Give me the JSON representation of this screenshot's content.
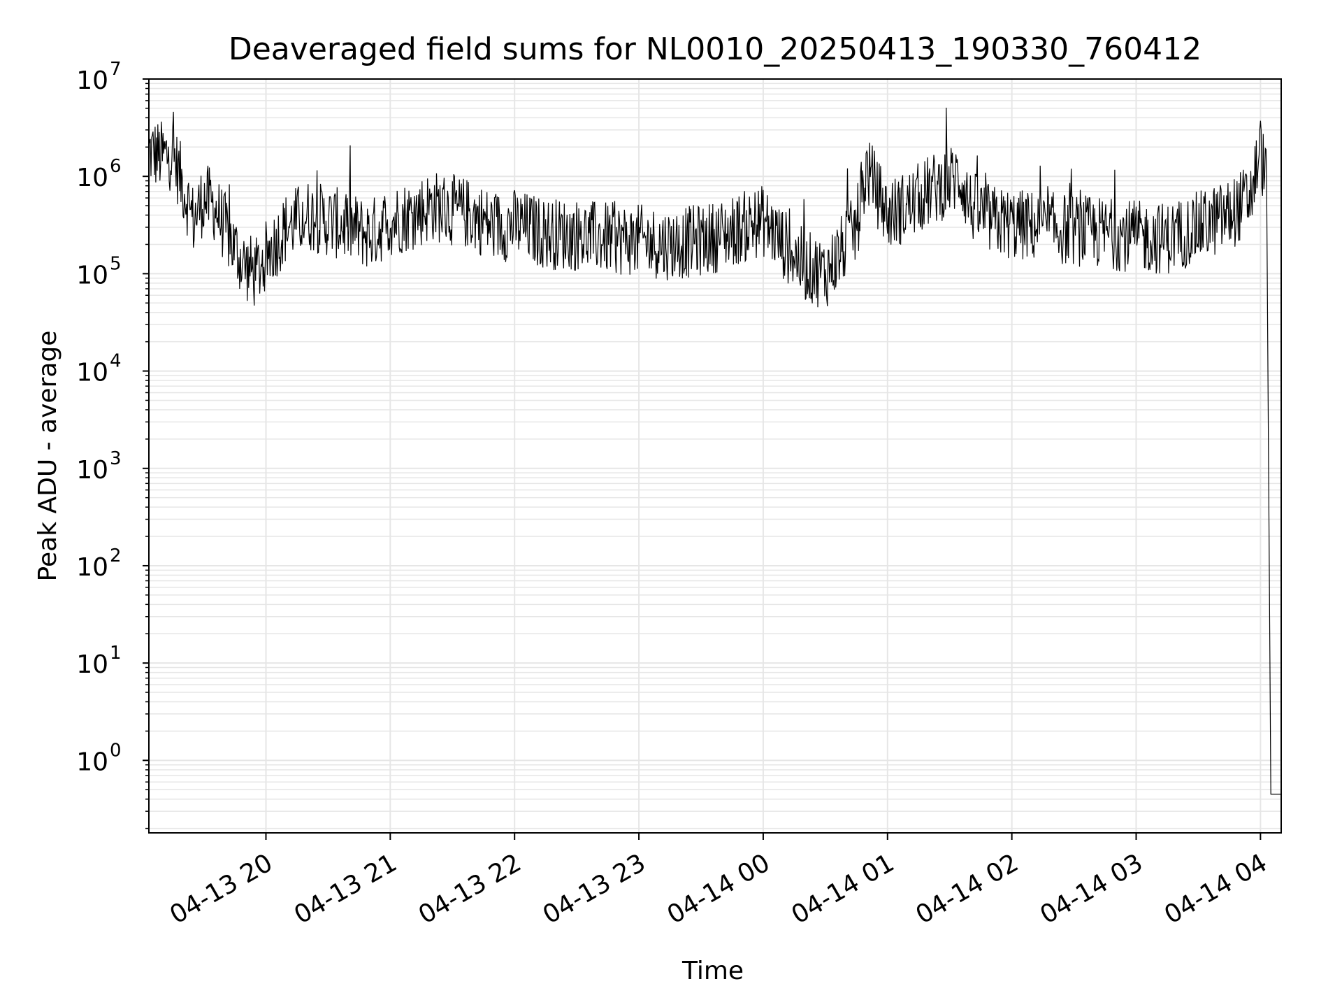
{
  "chart_data": {
    "type": "line",
    "title": "Deaveraged field sums for NL0010_20250413_190330_760412",
    "xlabel": "Time",
    "ylabel": "Peak ADU - average",
    "yscale": "log",
    "ylim": [
      0.18,
      10000000
    ],
    "xlim": [
      "2025-04-13T19:03:30",
      "2025-04-14T04:10:00"
    ],
    "x_ticks": [
      {
        "value": "2025-04-13T20:00",
        "label": "04-13 20"
      },
      {
        "value": "2025-04-13T21:00",
        "label": "04-13 21"
      },
      {
        "value": "2025-04-13T22:00",
        "label": "04-13 22"
      },
      {
        "value": "2025-04-13T23:00",
        "label": "04-13 23"
      },
      {
        "value": "2025-04-14T00:00",
        "label": "04-14 00"
      },
      {
        "value": "2025-04-14T01:00",
        "label": "04-14 01"
      },
      {
        "value": "2025-04-14T02:00",
        "label": "04-14 02"
      },
      {
        "value": "2025-04-14T03:00",
        "label": "04-14 03"
      },
      {
        "value": "2025-04-14T04:00",
        "label": "04-14 04"
      }
    ],
    "y_ticks": [
      {
        "value": 1,
        "base": "10",
        "exp": "0"
      },
      {
        "value": 10,
        "base": "10",
        "exp": "1"
      },
      {
        "value": 100,
        "base": "10",
        "exp": "2"
      },
      {
        "value": 1000,
        "base": "10",
        "exp": "3"
      },
      {
        "value": 10000,
        "base": "10",
        "exp": "4"
      },
      {
        "value": 100000,
        "base": "10",
        "exp": "5"
      },
      {
        "value": 1000000,
        "base": "10",
        "exp": "6"
      },
      {
        "value": 10000000,
        "base": "10",
        "exp": "7"
      }
    ],
    "grid": true,
    "line_color": "#000000",
    "grid_color": "#e6e6e6",
    "series": [
      {
        "x": [
          "2025-04-13T19:03:30",
          "2025-04-13T19:10",
          "2025-04-13T19:15",
          "2025-04-13T19:20",
          "2025-04-13T19:25",
          "2025-04-13T19:30",
          "2025-04-13T19:35",
          "2025-04-13T19:40",
          "2025-04-13T19:45",
          "2025-04-13T19:50",
          "2025-04-13T19:55",
          "2025-04-13T20:00",
          "2025-04-13T20:10",
          "2025-04-13T20:20",
          "2025-04-13T20:30",
          "2025-04-13T20:40",
          "2025-04-13T20:50",
          "2025-04-13T21:00",
          "2025-04-13T21:10",
          "2025-04-13T21:20",
          "2025-04-13T21:30",
          "2025-04-13T21:40",
          "2025-04-13T21:50",
          "2025-04-13T22:00",
          "2025-04-13T22:15",
          "2025-04-13T22:30",
          "2025-04-13T22:45",
          "2025-04-13T23:00",
          "2025-04-13T23:15",
          "2025-04-13T23:30",
          "2025-04-13T23:40",
          "2025-04-13T23:50",
          "2025-04-14T00:00",
          "2025-04-14T00:10",
          "2025-04-14T00:20",
          "2025-04-14T00:30",
          "2025-04-14T00:40",
          "2025-04-14T00:45",
          "2025-04-14T00:50",
          "2025-04-14T01:00",
          "2025-04-14T01:10",
          "2025-04-14T01:20",
          "2025-04-14T01:30",
          "2025-04-14T01:35",
          "2025-04-14T01:40",
          "2025-04-14T01:50",
          "2025-04-14T02:00",
          "2025-04-14T02:15",
          "2025-04-14T02:30",
          "2025-04-14T02:45",
          "2025-04-14T03:00",
          "2025-04-14T03:15",
          "2025-04-14T03:30",
          "2025-04-14T03:45",
          "2025-04-14T03:55",
          "2025-04-14T04:00",
          "2025-04-14T04:03",
          "2025-04-14T04:05",
          "2025-04-14T04:06",
          "2025-04-14T04:10"
        ],
        "y": [
          1800000,
          1600000,
          1700000,
          800000,
          350000,
          600000,
          500000,
          300000,
          180000,
          120000,
          100000,
          150000,
          300000,
          400000,
          350000,
          300000,
          250000,
          350000,
          400000,
          500000,
          450000,
          400000,
          300000,
          320000,
          260000,
          250000,
          230000,
          220000,
          200000,
          220000,
          250000,
          300000,
          350000,
          200000,
          120000,
          100000,
          200000,
          300000,
          1200000,
          400000,
          500000,
          700000,
          900000,
          1000000,
          500000,
          350000,
          320000,
          300000,
          280000,
          260000,
          240000,
          230000,
          300000,
          400000,
          600000,
          1900000,
          800000,
          0.45,
          0.45,
          0.45
        ]
      }
    ]
  }
}
